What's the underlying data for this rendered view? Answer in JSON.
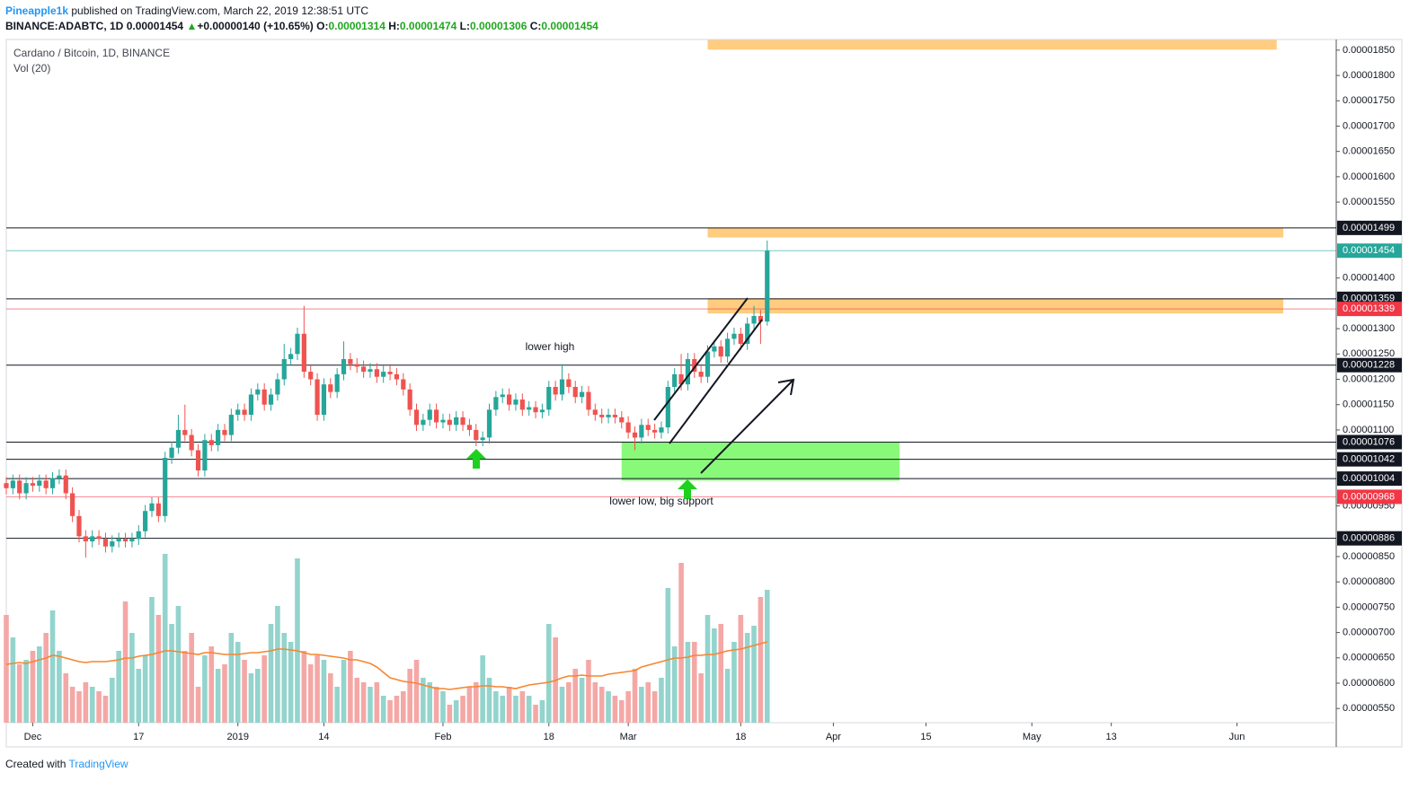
{
  "header": {
    "author": "Pineapple1k",
    "published": "published on TradingView.com, March 22, 2019 12:38:51 UTC",
    "symbol": "BINANCE:ADABTC, 1D",
    "last": "0.00001454",
    "arrow": "▲",
    "change": "+0.00000140 (+10.65%)",
    "o_label": "O:",
    "o": "0.00001314",
    "h_label": "H:",
    "h": "0.00001474",
    "l_label": "L:",
    "l": "0.00001306",
    "c_label": "C:",
    "c": "0.00001454"
  },
  "legend": {
    "title": "Cardano / Bitcoin, 1D, BINANCE",
    "vol": "Vol (20)"
  },
  "footer": {
    "created": "Created with",
    "brand": "TradingView"
  },
  "chart_data": {
    "type": "candlestick",
    "up_color": "#26a69a",
    "down_color": "#ef5350",
    "vol_up_color": "#93d4cd",
    "vol_down_color": "#f4a8a6",
    "ma_color": "#f7852e",
    "xlim": [
      -4,
      197
    ],
    "xticks": [
      {
        "value": 0,
        "label": "Dec"
      },
      {
        "value": 16,
        "label": "17"
      },
      {
        "value": 31,
        "label": "2019"
      },
      {
        "value": 44,
        "label": "14"
      },
      {
        "value": 62,
        "label": "Feb"
      },
      {
        "value": 78,
        "label": "18"
      },
      {
        "value": 90,
        "label": "Mar"
      },
      {
        "value": 107,
        "label": "18"
      },
      {
        "value": 121,
        "label": "Apr"
      },
      {
        "value": 135,
        "label": "15"
      },
      {
        "value": 151,
        "label": "May"
      },
      {
        "value": 163,
        "label": "13"
      },
      {
        "value": 182,
        "label": "Jun"
      }
    ],
    "ylim": [
      5.22e-06,
      1.871e-05
    ],
    "yticks": [
      {
        "value": 1.85e-05,
        "label": "0.00001850"
      },
      {
        "value": 1.8e-05,
        "label": "0.00001800"
      },
      {
        "value": 1.75e-05,
        "label": "0.00001750"
      },
      {
        "value": 1.7e-05,
        "label": "0.00001700"
      },
      {
        "value": 1.65e-05,
        "label": "0.00001650"
      },
      {
        "value": 1.6e-05,
        "label": "0.00001600"
      },
      {
        "value": 1.55e-05,
        "label": "0.00001550"
      },
      {
        "value": 1.4e-05,
        "label": "0.00001400"
      },
      {
        "value": 1.3e-05,
        "label": "0.00001300"
      },
      {
        "value": 1.25e-05,
        "label": "0.00001250"
      },
      {
        "value": 1.2e-05,
        "label": "0.00001200"
      },
      {
        "value": 1.15e-05,
        "label": "0.00001150"
      },
      {
        "value": 1.1e-05,
        "label": "0.00001100"
      },
      {
        "value": 9.5e-06,
        "label": "0.00000950"
      },
      {
        "value": 8.5e-06,
        "label": "0.00000850"
      },
      {
        "value": 8e-06,
        "label": "0.00000800"
      },
      {
        "value": 7.5e-06,
        "label": "0.00000750"
      },
      {
        "value": 7e-06,
        "label": "0.00000700"
      },
      {
        "value": 6.5e-06,
        "label": "0.00000650"
      },
      {
        "value": 6e-06,
        "label": "0.00000600"
      },
      {
        "value": 5.5e-06,
        "label": "0.00000550"
      }
    ],
    "vol_ylim": [
      0,
      200
    ],
    "levels": [
      {
        "value": 1.499e-05,
        "label": "0.00001499",
        "color": "#131722"
      },
      {
        "value": 1.454e-05,
        "label": "0.00001454",
        "color": "#26a69a"
      },
      {
        "value": 1.359e-05,
        "label": "0.00001359",
        "color": "#131722"
      },
      {
        "value": 1.339e-05,
        "label": "0.00001339",
        "color": "#f23645"
      },
      {
        "value": 1.228e-05,
        "label": "0.00001228",
        "color": "#131722"
      },
      {
        "value": 1.076e-05,
        "label": "0.00001076",
        "color": "#131722"
      },
      {
        "value": 1.042e-05,
        "label": "0.00001042",
        "color": "#131722"
      },
      {
        "value": 1.004e-05,
        "label": "0.00001004",
        "color": "#131722"
      },
      {
        "value": 9.68e-06,
        "label": "0.00000968",
        "color": "#f23645"
      },
      {
        "value": 8.86e-06,
        "label": "0.00000886",
        "color": "#131722"
      }
    ],
    "zones": [
      {
        "x": [
          102,
          188
        ],
        "y": [
          1.851e-05,
          1.87e-05
        ],
        "color": "#ffcc80"
      },
      {
        "x": [
          102,
          189
        ],
        "y": [
          1.48e-05,
          1.499e-05
        ],
        "color": "#ffcc80"
      },
      {
        "x": [
          102,
          189
        ],
        "y": [
          1.33e-05,
          1.36e-05
        ],
        "color": "#ffcc80"
      },
      {
        "x": [
          89,
          131
        ],
        "y": [
          1e-05,
          1.076e-05
        ],
        "color": "#89f97a"
      }
    ],
    "annotations": [
      "lower high",
      "lower low, big support"
    ],
    "x": [
      -4,
      -3,
      -2,
      -1,
      0,
      1,
      2,
      3,
      4,
      5,
      6,
      7,
      8,
      9,
      10,
      11,
      12,
      13,
      14,
      15,
      16,
      17,
      18,
      19,
      20,
      21,
      22,
      23,
      24,
      25,
      26,
      27,
      28,
      29,
      30,
      31,
      32,
      33,
      34,
      35,
      36,
      37,
      38,
      39,
      40,
      41,
      42,
      43,
      44,
      45,
      46,
      47,
      48,
      49,
      50,
      51,
      52,
      53,
      54,
      55,
      56,
      57,
      58,
      59,
      60,
      61,
      62,
      63,
      64,
      65,
      66,
      67,
      68,
      69,
      70,
      71,
      72,
      73,
      74,
      75,
      76,
      77,
      78,
      79,
      80,
      81,
      82,
      83,
      84,
      85,
      86,
      87,
      88,
      89,
      90,
      91,
      92,
      93,
      94,
      95,
      96,
      97,
      98,
      99,
      100,
      101,
      102,
      103,
      104,
      105,
      106,
      107,
      108,
      109,
      110,
      111
    ],
    "ohlc": [
      [
        9.95e-06,
        1.007e-05,
        9.73e-06,
        9.85e-06
      ],
      [
        9.85e-06,
        1.012e-05,
        9.73e-06,
        1e-05
      ],
      [
        1e-05,
        1.012e-05,
        9.63e-06,
        9.75e-06
      ],
      [
        9.75e-06,
        1.007e-05,
        9.63e-06,
        9.95e-06
      ],
      [
        9.95e-06,
        1.007e-05,
        9.78e-06,
        9.9e-06
      ],
      [
        9.9e-06,
        1.012e-05,
        9.78e-06,
        1e-05
      ],
      [
        1e-05,
        1.012e-05,
        9.73e-06,
        9.85e-06
      ],
      [
        9.85e-06,
        1.017e-05,
        9.73e-06,
        1.005e-05
      ],
      [
        1.005e-05,
        1.022e-05,
        9.93e-06,
        1.01e-05
      ],
      [
        1.01e-05,
        1.022e-05,
        9.63e-06,
        9.75e-06
      ],
      [
        9.75e-06,
        9.87e-06,
        9.18e-06,
        9.3e-06
      ],
      [
        9.3e-06,
        9.42e-06,
        8.78e-06,
        8.9e-06
      ],
      [
        8.9e-06,
        9.02e-06,
        8.48e-06,
        8.8e-06
      ],
      [
        8.8e-06,
        9.02e-06,
        8.68e-06,
        8.9e-06
      ],
      [
        8.9e-06,
        9.02e-06,
        8.73e-06,
        8.85e-06
      ],
      [
        8.85e-06,
        8.97e-06,
        8.58e-06,
        8.7e-06
      ],
      [
        8.7e-06,
        8.92e-06,
        8.58e-06,
        8.8e-06
      ],
      [
        8.8e-06,
        8.97e-06,
        8.68e-06,
        8.85e-06
      ],
      [
        8.85e-06,
        8.97e-06,
        8.68e-06,
        8.8e-06
      ],
      [
        8.8e-06,
        8.97e-06,
        8.68e-06,
        8.85e-06
      ],
      [
        8.85e-06,
        9.12e-06,
        8.73e-06,
        9e-06
      ],
      [
        9e-06,
        9.52e-06,
        8.88e-06,
        9.4e-06
      ],
      [
        9.4e-06,
        9.67e-06,
        9.28e-06,
        9.55e-06
      ],
      [
        9.55e-06,
        9.67e-06,
        9.18e-06,
        9.3e-06
      ],
      [
        9.3e-06,
        1.057e-05,
        9.18e-06,
        1.045e-05
      ],
      [
        1.045e-05,
        1.077e-05,
        1.033e-05,
        1.065e-05
      ],
      [
        1.065e-05,
        1.13e-05,
        1.053e-05,
        1.1e-05
      ],
      [
        1.1e-05,
        1.15e-05,
        1.078e-05,
        1.09e-05
      ],
      [
        1.09e-05,
        1.102e-05,
        1.048e-05,
        1.06e-05
      ],
      [
        1.06e-05,
        1.072e-05,
        1.008e-05,
        1.02e-05
      ],
      [
        1.02e-05,
        1.092e-05,
        1.008e-05,
        1.08e-05
      ],
      [
        1.08e-05,
        1.092e-05,
        1.058e-05,
        1.07e-05
      ],
      [
        1.07e-05,
        1.112e-05,
        1.058e-05,
        1.1e-05
      ],
      [
        1.1e-05,
        1.112e-05,
        1.078e-05,
        1.09e-05
      ],
      [
        1.09e-05,
        1.142e-05,
        1.078e-05,
        1.13e-05
      ],
      [
        1.13e-05,
        1.152e-05,
        1.118e-05,
        1.14e-05
      ],
      [
        1.14e-05,
        1.152e-05,
        1.118e-05,
        1.13e-05
      ],
      [
        1.13e-05,
        1.182e-05,
        1.118e-05,
        1.17e-05
      ],
      [
        1.17e-05,
        1.192e-05,
        1.158e-05,
        1.18e-05
      ],
      [
        1.18e-05,
        1.192e-05,
        1.138e-05,
        1.15e-05
      ],
      [
        1.15e-05,
        1.182e-05,
        1.138e-05,
        1.17e-05
      ],
      [
        1.17e-05,
        1.212e-05,
        1.158e-05,
        1.2e-05
      ],
      [
        1.2e-05,
        1.27e-05,
        1.188e-05,
        1.24e-05
      ],
      [
        1.24e-05,
        1.262e-05,
        1.228e-05,
        1.25e-05
      ],
      [
        1.25e-05,
        1.302e-05,
        1.238e-05,
        1.29e-05
      ],
      [
        1.29e-05,
        1.345e-05,
        1.203e-05,
        1.215e-05
      ],
      [
        1.215e-05,
        1.227e-05,
        1.188e-05,
        1.2e-05
      ],
      [
        1.2e-05,
        1.212e-05,
        1.118e-05,
        1.13e-05
      ],
      [
        1.13e-05,
        1.202e-05,
        1.118e-05,
        1.19e-05
      ],
      [
        1.19e-05,
        1.202e-05,
        1.163e-05,
        1.175e-05
      ],
      [
        1.175e-05,
        1.222e-05,
        1.163e-05,
        1.21e-05
      ],
      [
        1.21e-05,
        1.275e-05,
        1.198e-05,
        1.24e-05
      ],
      [
        1.24e-05,
        1.252e-05,
        1.218e-05,
        1.23e-05
      ],
      [
        1.23e-05,
        1.242e-05,
        1.213e-05,
        1.225e-05
      ],
      [
        1.225e-05,
        1.237e-05,
        1.203e-05,
        1.215e-05
      ],
      [
        1.215e-05,
        1.232e-05,
        1.203e-05,
        1.22e-05
      ],
      [
        1.22e-05,
        1.232e-05,
        1.193e-05,
        1.205e-05
      ],
      [
        1.205e-05,
        1.227e-05,
        1.193e-05,
        1.215e-05
      ],
      [
        1.215e-05,
        1.227e-05,
        1.198e-05,
        1.21e-05
      ],
      [
        1.21e-05,
        1.222e-05,
        1.188e-05,
        1.2e-05
      ],
      [
        1.2e-05,
        1.212e-05,
        1.168e-05,
        1.18e-05
      ],
      [
        1.18e-05,
        1.192e-05,
        1.128e-05,
        1.14e-05
      ],
      [
        1.14e-05,
        1.152e-05,
        1.098e-05,
        1.11e-05
      ],
      [
        1.11e-05,
        1.132e-05,
        1.098e-05,
        1.12e-05
      ],
      [
        1.12e-05,
        1.152e-05,
        1.108e-05,
        1.14e-05
      ],
      [
        1.14e-05,
        1.152e-05,
        1.103e-05,
        1.115e-05
      ],
      [
        1.115e-05,
        1.132e-05,
        1.103e-05,
        1.12e-05
      ],
      [
        1.12e-05,
        1.132e-05,
        1.098e-05,
        1.11e-05
      ],
      [
        1.11e-05,
        1.137e-05,
        1.098e-05,
        1.125e-05
      ],
      [
        1.125e-05,
        1.137e-05,
        1.098e-05,
        1.11e-05
      ],
      [
        1.11e-05,
        1.122e-05,
        1.088e-05,
        1.1e-05
      ],
      [
        1.1e-05,
        1.112e-05,
        1.068e-05,
        1.08e-05
      ],
      [
        1.08e-05,
        1.097e-05,
        1.068e-05,
        1.085e-05
      ],
      [
        1.085e-05,
        1.152e-05,
        1.073e-05,
        1.14e-05
      ],
      [
        1.14e-05,
        1.177e-05,
        1.128e-05,
        1.165e-05
      ],
      [
        1.165e-05,
        1.182e-05,
        1.153e-05,
        1.17e-05
      ],
      [
        1.17e-05,
        1.182e-05,
        1.138e-05,
        1.15e-05
      ],
      [
        1.15e-05,
        1.172e-05,
        1.138e-05,
        1.16e-05
      ],
      [
        1.16e-05,
        1.172e-05,
        1.128e-05,
        1.14e-05
      ],
      [
        1.14e-05,
        1.157e-05,
        1.128e-05,
        1.145e-05
      ],
      [
        1.145e-05,
        1.157e-05,
        1.123e-05,
        1.135e-05
      ],
      [
        1.135e-05,
        1.152e-05,
        1.123e-05,
        1.14e-05
      ],
      [
        1.14e-05,
        1.197e-05,
        1.128e-05,
        1.185e-05
      ],
      [
        1.185e-05,
        1.197e-05,
        1.158e-05,
        1.17e-05
      ],
      [
        1.17e-05,
        1.23e-05,
        1.158e-05,
        1.2e-05
      ],
      [
        1.2e-05,
        1.212e-05,
        1.173e-05,
        1.185e-05
      ],
      [
        1.185e-05,
        1.197e-05,
        1.153e-05,
        1.165e-05
      ],
      [
        1.165e-05,
        1.187e-05,
        1.153e-05,
        1.175e-05
      ],
      [
        1.175e-05,
        1.187e-05,
        1.128e-05,
        1.14e-05
      ],
      [
        1.14e-05,
        1.152e-05,
        1.118e-05,
        1.13e-05
      ],
      [
        1.13e-05,
        1.142e-05,
        1.113e-05,
        1.125e-05
      ],
      [
        1.125e-05,
        1.142e-05,
        1.113e-05,
        1.13e-05
      ],
      [
        1.13e-05,
        1.142e-05,
        1.113e-05,
        1.125e-05
      ],
      [
        1.125e-05,
        1.137e-05,
        1.103e-05,
        1.115e-05
      ],
      [
        1.115e-05,
        1.127e-05,
        1.083e-05,
        1.095e-05
      ],
      [
        1.095e-05,
        1.107e-05,
        1.06e-05,
        1.085e-05
      ],
      [
        1.085e-05,
        1.122e-05,
        1.073e-05,
        1.11e-05
      ],
      [
        1.11e-05,
        1.122e-05,
        1.088e-05,
        1.1e-05
      ],
      [
        1.1e-05,
        1.112e-05,
        1.083e-05,
        1.095e-05
      ],
      [
        1.095e-05,
        1.117e-05,
        1.083e-05,
        1.105e-05
      ],
      [
        1.105e-05,
        1.197e-05,
        1.093e-05,
        1.185e-05
      ],
      [
        1.185e-05,
        1.222e-05,
        1.173e-05,
        1.21e-05
      ],
      [
        1.21e-05,
        1.25e-05,
        1.178e-05,
        1.19e-05
      ],
      [
        1.19e-05,
        1.252e-05,
        1.178e-05,
        1.24e-05
      ],
      [
        1.24e-05,
        1.252e-05,
        1.203e-05,
        1.215e-05
      ],
      [
        1.215e-05,
        1.227e-05,
        1.193e-05,
        1.205e-05
      ],
      [
        1.205e-05,
        1.267e-05,
        1.193e-05,
        1.255e-05
      ],
      [
        1.255e-05,
        1.277e-05,
        1.243e-05,
        1.265e-05
      ],
      [
        1.265e-05,
        1.277e-05,
        1.233e-05,
        1.245e-05
      ],
      [
        1.245e-05,
        1.292e-05,
        1.233e-05,
        1.28e-05
      ],
      [
        1.28e-05,
        1.302e-05,
        1.268e-05,
        1.29e-05
      ],
      [
        1.29e-05,
        1.302e-05,
        1.258e-05,
        1.27e-05
      ],
      [
        1.27e-05,
        1.322e-05,
        1.258e-05,
        1.31e-05
      ],
      [
        1.31e-05,
        1.345e-05,
        1.298e-05,
        1.325e-05
      ],
      [
        1.325e-05,
        1.337e-05,
        1.27e-05,
        1.314e-05
      ],
      [
        1.314e-05,
        1.474e-05,
        1.306e-05,
        1.454e-05
      ]
    ],
    "volume": [
      120,
      95,
      65,
      70,
      80,
      85,
      100,
      125,
      80,
      55,
      40,
      35,
      45,
      40,
      35,
      30,
      50,
      80,
      135,
      100,
      60,
      75,
      140,
      120,
      188,
      110,
      130,
      80,
      100,
      40,
      75,
      85,
      60,
      65,
      100,
      90,
      70,
      55,
      60,
      75,
      110,
      130,
      100,
      90,
      183,
      80,
      65,
      75,
      70,
      55,
      40,
      70,
      80,
      50,
      45,
      40,
      45,
      30,
      25,
      30,
      35,
      60,
      70,
      50,
      45,
      40,
      35,
      20,
      25,
      30,
      40,
      45,
      75,
      50,
      35,
      30,
      40,
      30,
      35,
      30,
      20,
      25,
      110,
      95,
      40,
      45,
      60,
      50,
      70,
      45,
      40,
      35,
      30,
      25,
      35,
      60,
      40,
      45,
      35,
      50,
      150,
      85,
      178,
      90,
      90,
      55,
      120,
      105,
      110,
      60,
      90,
      120,
      100,
      108,
      140,
      148
    ],
    "volume_ma": [
      65,
      66,
      67,
      66,
      68,
      70,
      72,
      75,
      74,
      72,
      70,
      68,
      67,
      68,
      68,
      68,
      69,
      70,
      72,
      72,
      74,
      75,
      76,
      78,
      80,
      80,
      79,
      78,
      77,
      76,
      78,
      78,
      77,
      76,
      76,
      76,
      77,
      78,
      78,
      79,
      80,
      82,
      82,
      81,
      80,
      78,
      76,
      76,
      75,
      74,
      73,
      72,
      70,
      70,
      68,
      66,
      62,
      56,
      50,
      48,
      46,
      45,
      44,
      42,
      40,
      38,
      38,
      37,
      38,
      39,
      40,
      40,
      41,
      41,
      40,
      40,
      39,
      38,
      40,
      42,
      43,
      44,
      45,
      47,
      50,
      52,
      52,
      53,
      52,
      52,
      52,
      54,
      55,
      56,
      57,
      58,
      62,
      64,
      66,
      68,
      70,
      72,
      72,
      73,
      75,
      75,
      76,
      76,
      78,
      80,
      81,
      82,
      84,
      86,
      88,
      90
    ]
  }
}
